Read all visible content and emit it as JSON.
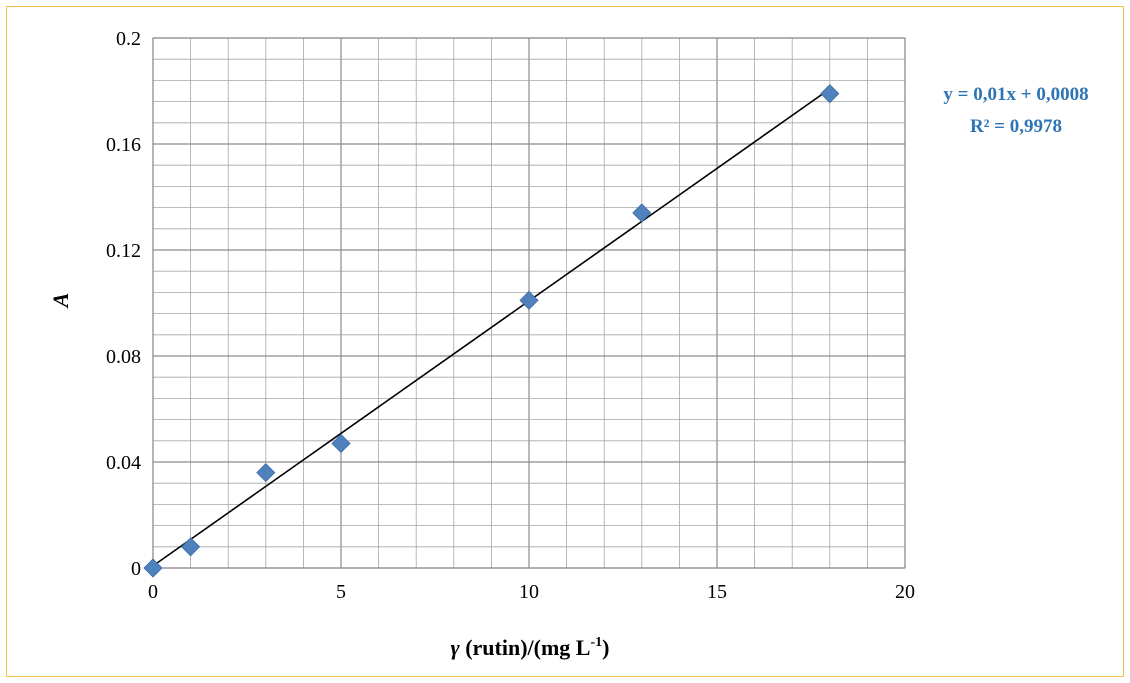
{
  "chart_data": {
    "type": "scatter",
    "x": [
      0,
      1,
      3,
      5,
      10,
      13,
      18
    ],
    "y": [
      0,
      0.008,
      0.036,
      0.047,
      0.101,
      0.134,
      0.179
    ],
    "xlim": [
      0,
      20
    ],
    "ylim": [
      0,
      0.2
    ],
    "x_ticks": [
      "0",
      "5",
      "10",
      "15",
      "20"
    ],
    "y_ticks": [
      "0",
      "0.04",
      "0.08",
      "0.12",
      "0.16",
      "0.2"
    ],
    "xlabel": {
      "prefix": "γ",
      "main": " (rutin)/(mg L",
      "sup": "-1",
      "suffix": ")"
    },
    "ylabel": "A",
    "grid": true,
    "trendline": {
      "type": "linear",
      "slope": 0.01,
      "intercept": 0.0008,
      "x_range": [
        0,
        18
      ]
    },
    "annotations": {
      "equation": "y = 0,01x + 0,0008",
      "r_squared": "R² = 0,9978"
    },
    "colors": {
      "marker": "#4f81bd",
      "trendline": "#000000",
      "annotation": "#2e75b6",
      "grid": "#a6a6a6",
      "frame_border": "#f3c24a"
    }
  }
}
